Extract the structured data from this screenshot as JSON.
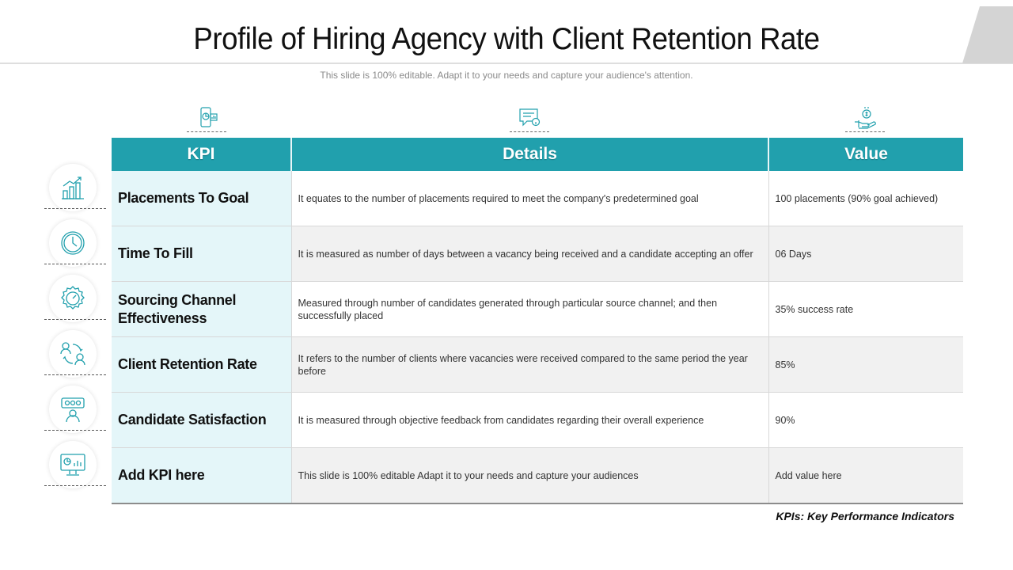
{
  "slide": {
    "title": "Profile of Hiring Agency with Client Retention Rate",
    "subtitle": "This slide is 100% editable. Adapt it to your needs and capture your audience's attention.",
    "footnote": "KPIs: Key Performance Indicators",
    "accent_color": "#21a0ad"
  },
  "table": {
    "headers": {
      "kpi": "KPI",
      "details": "Details",
      "value": "Value"
    },
    "header_icons": [
      "mobile-chart-icon",
      "chat-info-icon",
      "hand-money-icon"
    ],
    "rows": [
      {
        "icon": "chart-growth-icon",
        "kpi": "Placements To Goal",
        "details": "It equates to the number of placements required to meet the company's  predetermined goal",
        "value": "100 placements (90% goal achieved)"
      },
      {
        "icon": "clock-icon",
        "kpi": "Time To Fill",
        "details": "It is measured as number of days between a vacancy being received and a candidate accepting an offer",
        "value": "06 Days"
      },
      {
        "icon": "gear-gauge-icon",
        "kpi": "Sourcing Channel Effectiveness",
        "details": "Measured through number of candidates generated through particular source channel; and then successfully placed",
        "value": "35% success rate"
      },
      {
        "icon": "people-exchange-icon",
        "kpi": "Client Retention Rate",
        "details": "It refers to the number of clients where vacancies were received compared to the same period the year before",
        "value": "85%"
      },
      {
        "icon": "satisfaction-rating-icon",
        "kpi": "Candidate Satisfaction",
        "details": "It is measured through objective feedback from candidates  regarding their overall experience",
        "value": "90%"
      },
      {
        "icon": "monitor-dashboard-icon",
        "kpi": "Add KPI here",
        "details": "This slide is 100% editable Adapt it to your needs and capture your audiences",
        "value": "Add value here"
      }
    ]
  }
}
